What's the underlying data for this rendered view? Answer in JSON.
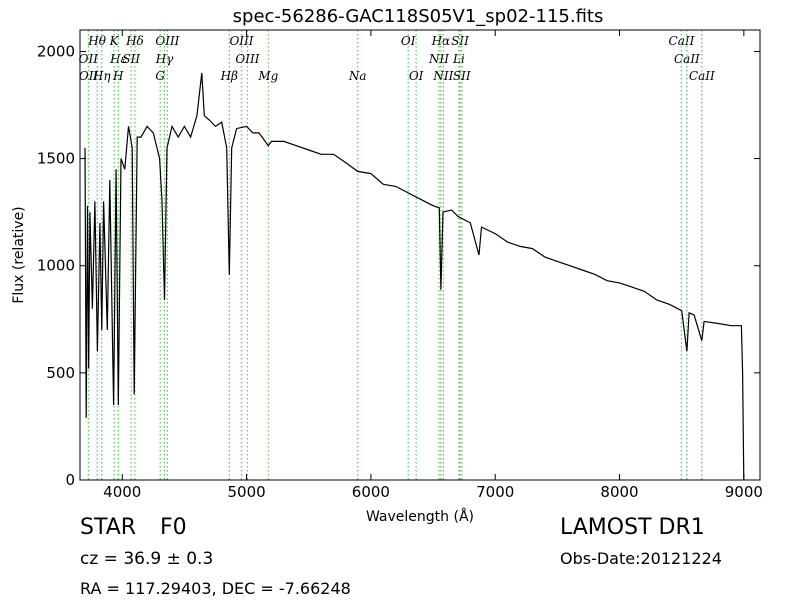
{
  "chart_data": {
    "type": "line",
    "title": "spec-56286-GAC118S05V1_sp02-115.fits",
    "x_label": "Wavelength (Å)",
    "y_label": "Flux (relative)",
    "xlim": [
      3660,
      9130
    ],
    "ylim": [
      0,
      2100
    ],
    "xticks": [
      4000,
      5000,
      6000,
      7000,
      8000,
      9000
    ],
    "yticks": [
      0,
      500,
      1000,
      1500,
      2000
    ],
    "color": "#000000",
    "line_color": "#66bb66",
    "x": [
      3700,
      3710,
      3720,
      3730,
      3740,
      3760,
      3780,
      3800,
      3820,
      3835,
      3850,
      3880,
      3900,
      3930,
      3950,
      3968,
      3990,
      4020,
      4050,
      4080,
      4096,
      4120,
      4150,
      4200,
      4250,
      4300,
      4320,
      4340,
      4360,
      4400,
      4450,
      4500,
      4550,
      4600,
      4640,
      4660,
      4700,
      4750,
      4800,
      4840,
      4861,
      4880,
      4920,
      5000,
      5050,
      5100,
      5175,
      5200,
      5300,
      5400,
      5500,
      5600,
      5700,
      5800,
      5894,
      6000,
      6100,
      6200,
      6300,
      6400,
      6500,
      6550,
      6563,
      6580,
      6650,
      6700,
      6800,
      6870,
      6890,
      7000,
      7100,
      7200,
      7300,
      7400,
      7500,
      7600,
      7700,
      7800,
      7900,
      8000,
      8100,
      8200,
      8300,
      8400,
      8500,
      8542,
      8560,
      8600,
      8662,
      8680,
      8800,
      8900,
      8980,
      8990,
      9000
    ],
    "values": [
      1550,
      290,
      1280,
      520,
      1250,
      800,
      1300,
      600,
      1200,
      700,
      1300,
      700,
      1400,
      350,
      1450,
      350,
      1500,
      1450,
      1650,
      1550,
      400,
      1600,
      1600,
      1650,
      1620,
      1500,
      1300,
      840,
      1550,
      1650,
      1600,
      1650,
      1600,
      1700,
      1900,
      1700,
      1680,
      1650,
      1670,
      1550,
      958,
      1550,
      1640,
      1650,
      1620,
      1620,
      1560,
      1580,
      1580,
      1560,
      1540,
      1520,
      1520,
      1480,
      1440,
      1430,
      1380,
      1370,
      1340,
      1310,
      1280,
      1270,
      888,
      1250,
      1260,
      1230,
      1200,
      1050,
      1180,
      1150,
      1110,
      1090,
      1080,
      1040,
      1020,
      1000,
      980,
      960,
      930,
      920,
      900,
      880,
      840,
      820,
      790,
      600,
      780,
      770,
      650,
      740,
      730,
      720,
      720,
      500,
      0
    ],
    "spectral_lines": [
      [
        {
          "label": "Hθ",
          "wavelength": 3798
        },
        {
          "label": "K",
          "wavelength": 3934
        },
        {
          "label": "Hδ",
          "wavelength": 4102
        },
        {
          "label": "OIII",
          "wavelength": 4363
        },
        {
          "label": "OIII",
          "wavelength": 4959
        },
        {
          "label": "OI",
          "wavelength": 6300
        },
        {
          "label": "Hα",
          "wavelength": 6563
        },
        {
          "label": "SII",
          "wavelength": 6717
        },
        {
          "label": "CaII",
          "wavelength": 8498
        }
      ],
      [
        {
          "label": "OII",
          "wavelength": 3727
        },
        {
          "label": "Hε",
          "wavelength": 3970
        },
        {
          "label": "SII",
          "wavelength": 4072
        },
        {
          "label": "Hγ",
          "wavelength": 4340
        },
        {
          "label": "OIII",
          "wavelength": 5007
        },
        {
          "label": "NII",
          "wavelength": 6548
        },
        {
          "label": "Li",
          "wavelength": 6708
        },
        {
          "label": "CaII",
          "wavelength": 8542
        }
      ],
      [
        {
          "label": "OII",
          "wavelength": 3729
        },
        {
          "label": "Hη",
          "wavelength": 3835
        },
        {
          "label": "H",
          "wavelength": 3968
        },
        {
          "label": "G",
          "wavelength": 4305
        },
        {
          "label": "Hβ",
          "wavelength": 4861
        },
        {
          "label": "Mg",
          "wavelength": 5175
        },
        {
          "label": "Na",
          "wavelength": 5894
        },
        {
          "label": "OI",
          "wavelength": 6364
        },
        {
          "label": "NII",
          "wavelength": 6583
        },
        {
          "label": "SII",
          "wavelength": 6731
        },
        {
          "label": "CaII",
          "wavelength": 8662
        }
      ]
    ],
    "object_class": "STAR",
    "subclass": "F0",
    "redshift": "cz = 36.9 ± 0.3",
    "coordinates": "RA = 117.29403, DEC = -7.66248",
    "survey": "LAMOST DR1",
    "obs_date": "Obs-Date:20121224"
  }
}
